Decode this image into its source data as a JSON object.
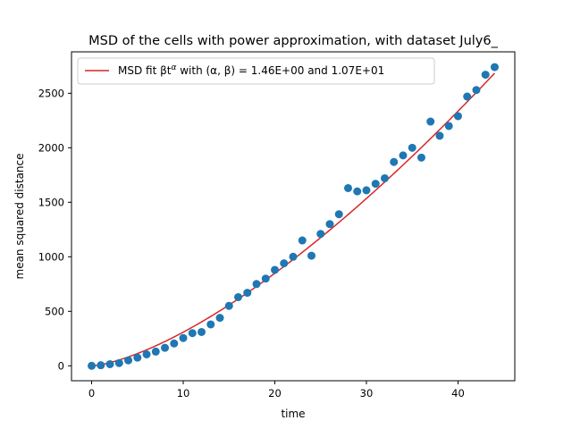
{
  "chart_data": {
    "type": "scatter",
    "title": "MSD of the cells with power approximation, with dataset July6_",
    "xlabel": "time",
    "ylabel": "mean squared distance",
    "xlim": [
      -2.2,
      46.2
    ],
    "ylim": [
      -137,
      2880
    ],
    "xticks": [
      0,
      10,
      20,
      30,
      40
    ],
    "yticks": [
      0,
      500,
      1000,
      1500,
      2000,
      2500
    ],
    "x_tick_labels": [
      "0",
      "10",
      "20",
      "30",
      "40"
    ],
    "y_tick_labels": [
      "0",
      "500",
      "1000",
      "1500",
      "2000",
      "2500"
    ],
    "grid": false,
    "legend_placement": "upper-left",
    "series": [
      {
        "kind": "points",
        "color": "#1f77b4",
        "x": [
          0,
          1,
          2,
          3,
          4,
          5,
          6,
          7,
          8,
          9,
          10,
          11,
          12,
          13,
          14,
          15,
          16,
          17,
          18,
          19,
          20,
          21,
          22,
          23,
          24,
          25,
          26,
          27,
          28,
          29,
          30,
          31,
          32,
          33,
          34,
          35,
          36,
          37,
          38,
          39,
          40,
          41,
          42,
          43,
          44
        ],
        "y": [
          0,
          5,
          15,
          25,
          50,
          75,
          105,
          130,
          165,
          205,
          255,
          300,
          310,
          380,
          440,
          550,
          630,
          670,
          750,
          800,
          880,
          940,
          1000,
          1150,
          1010,
          1210,
          1300,
          1390,
          1630,
          1600,
          1610,
          1670,
          1720,
          1870,
          1930,
          2000,
          1910,
          2240,
          2110,
          2200,
          2290,
          2470,
          2530,
          2670,
          2740
        ]
      },
      {
        "kind": "fit-line",
        "name": "MSD fit",
        "color": "#d62728",
        "alpha": 1.46,
        "beta": 10.7,
        "x_start": 0,
        "x_end": 44
      }
    ],
    "legend": {
      "label_prefix": "MSD fit βt",
      "label_exponent": "α",
      "label_params": " with (α, β) =  ",
      "alpha_text": "1.46E+00",
      "and_text": " and ",
      "beta_text": "1.07E+01"
    }
  }
}
